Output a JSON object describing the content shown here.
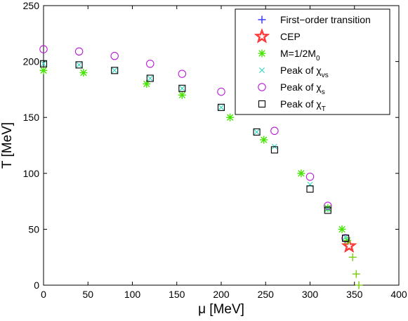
{
  "chart_data": {
    "type": "scatter",
    "xlabel": "μ [MeV]",
    "ylabel": "T [MeV]",
    "xlim": [
      0,
      400
    ],
    "ylim": [
      0,
      250
    ],
    "xticks": [
      0,
      50,
      100,
      150,
      200,
      250,
      300,
      350,
      400
    ],
    "yticks": [
      0,
      50,
      100,
      150,
      200,
      250
    ],
    "grid": false,
    "legend_position": "top-right",
    "series": [
      {
        "name": "First−order transition",
        "marker": "plus",
        "color": "#7fce1b",
        "legend_color": "#3a3aff",
        "points": [
          [
            348,
            25
          ],
          [
            352,
            10
          ],
          [
            355,
            0
          ]
        ]
      },
      {
        "name": "CEP",
        "marker": "star",
        "color": "#ff2020",
        "points": [
          [
            344,
            35
          ]
        ]
      },
      {
        "name": "M=1/2M0",
        "name_parts": [
          "M=1/2M",
          "0",
          ""
        ],
        "marker": "asterisk",
        "color": "#44e400",
        "points": [
          [
            0,
            192
          ],
          [
            45,
            190
          ],
          [
            116,
            180
          ],
          [
            156,
            170
          ],
          [
            210,
            150
          ],
          [
            248,
            130
          ],
          [
            290,
            100
          ],
          [
            320,
            69
          ],
          [
            336,
            50
          ],
          [
            342,
            40
          ]
        ]
      },
      {
        "name": "Peak of χvs",
        "name_parts": [
          "Peak of χ",
          "vs",
          ""
        ],
        "marker": "x",
        "color": "#3fd8c4",
        "points": [
          [
            0,
            198
          ],
          [
            40,
            197
          ],
          [
            80,
            192
          ],
          [
            120,
            185
          ],
          [
            156,
            176
          ],
          [
            200,
            159
          ],
          [
            240,
            137
          ],
          [
            260,
            124
          ],
          [
            300,
            90
          ],
          [
            320,
            68
          ],
          [
            340,
            43
          ]
        ]
      },
      {
        "name": "Peak of χs",
        "name_parts": [
          "Peak of χ",
          "s",
          ""
        ],
        "marker": "circle",
        "color": "#b81ad8",
        "points": [
          [
            0,
            211
          ],
          [
            40,
            209
          ],
          [
            80,
            205
          ],
          [
            120,
            198
          ],
          [
            156,
            189
          ],
          [
            200,
            173
          ],
          [
            260,
            138
          ],
          [
            300,
            97
          ],
          [
            320,
            71
          ],
          [
            340,
            42
          ]
        ]
      },
      {
        "name": "Peak of χT",
        "name_parts": [
          "Peak of χ",
          "T",
          ""
        ],
        "marker": "square",
        "color": "#000000",
        "points": [
          [
            0,
            198
          ],
          [
            40,
            197
          ],
          [
            80,
            192
          ],
          [
            120,
            185
          ],
          [
            156,
            176
          ],
          [
            200,
            159
          ],
          [
            240,
            137
          ],
          [
            260,
            121
          ],
          [
            300,
            86
          ],
          [
            320,
            67
          ],
          [
            340,
            42
          ]
        ]
      }
    ]
  }
}
